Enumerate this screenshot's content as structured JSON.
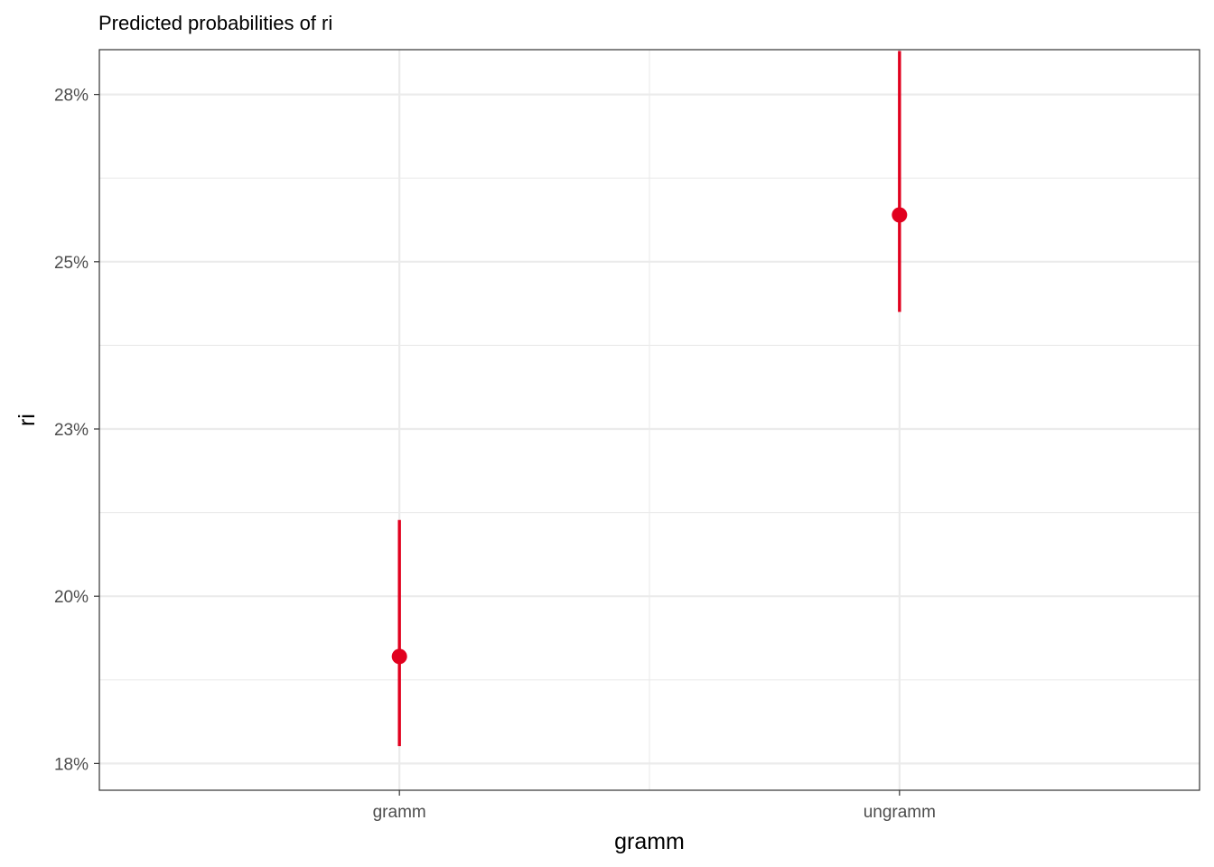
{
  "chart_data": {
    "type": "scatter",
    "title": "Predicted probabilities of ri",
    "xlabel": "gramm",
    "ylabel": "ri",
    "categories": [
      "gramm",
      "ungramm"
    ],
    "series": [
      {
        "estimate": [
          0.191,
          0.257
        ],
        "ci_low": [
          0.1776,
          0.2425
        ],
        "ci_high": [
          0.2114,
          0.2815
        ]
      }
    ],
    "y_ticks": [
      {
        "value": 0.175,
        "label": "18%"
      },
      {
        "value": 0.2,
        "label": "20%"
      },
      {
        "value": 0.225,
        "label": "23%"
      },
      {
        "value": 0.25,
        "label": "25%"
      },
      {
        "value": 0.275,
        "label": "28%"
      }
    ],
    "ylim": [
      0.171,
      0.2817
    ],
    "grid": true,
    "point_color": "#E1001E",
    "grid_color": "#EBEBEB",
    "panel_border_color": "#333333"
  }
}
